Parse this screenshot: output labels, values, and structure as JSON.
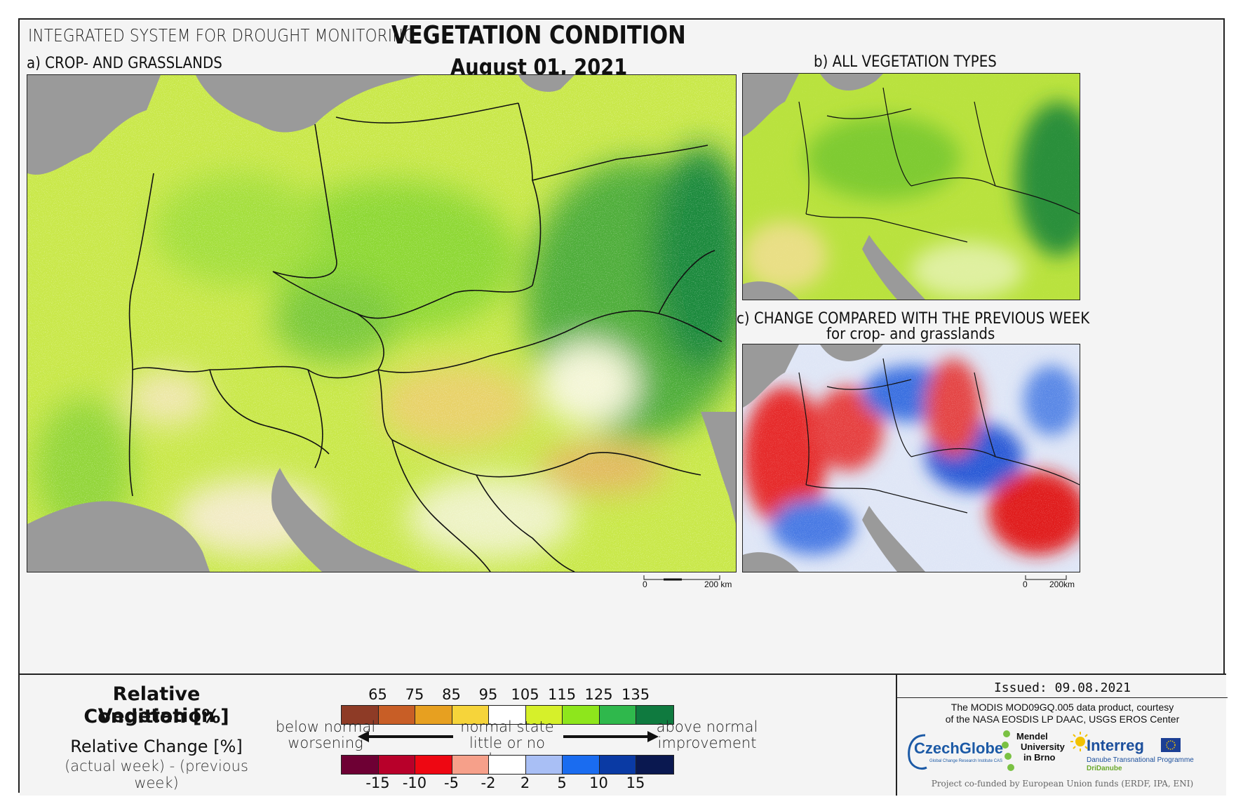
{
  "header": {
    "system_title": "INTEGRATED SYSTEM FOR DROUGHT MONITORING",
    "main_title": "VEGETATION CONDITION",
    "date": "August 01, 2021"
  },
  "panels": {
    "a": {
      "title": "a) CROP- AND GRASSLANDS",
      "scale_zero": "0",
      "scale_label": "200 km"
    },
    "b": {
      "title": "b) ALL VEGETATION TYPES"
    },
    "c": {
      "title": "c) CHANGE COMPARED WITH THE PREVIOUS WEEK",
      "subtitle": "for crop- and grasslands",
      "scale_zero": "0",
      "scale_label": "200km"
    }
  },
  "legend": {
    "rvc_title_line1": "Relative Vegetation",
    "rvc_title_line2": "Condition [%]",
    "change_title": "Relative Change [%]",
    "change_sub": "(actual week) - (previous week)",
    "rvc_ticks": [
      "65",
      "75",
      "85",
      "95",
      "105",
      "115",
      "125",
      "135"
    ],
    "rvc_colors": [
      "#8e3b26",
      "#c85e26",
      "#e7a020",
      "#f6d43a",
      "#ffffff",
      "#d6f02a",
      "#8ee61c",
      "#2fb84c",
      "#0f7a3f"
    ],
    "change_ticks": [
      "-15",
      "-10",
      "-5",
      "-2",
      "2",
      "5",
      "10",
      "15"
    ],
    "change_colors": [
      "#6e0034",
      "#b8002a",
      "#ee0712",
      "#f6a08a",
      "#ffffff",
      "#a9bff5",
      "#1a6cf0",
      "#0a3aa4",
      "#0a1850"
    ],
    "below_line1": "below normal",
    "below_line2": "worsening",
    "normal_line1": "normal state",
    "normal_line2": "little or no change",
    "above_line1": "above normal",
    "above_line2": "improvement"
  },
  "info": {
    "issued": "Issued: 09.08.2021",
    "credit_line1": "The MODIS MOD09GQ.005 data product, courtesy",
    "credit_line2": "of the NASA EOSDIS LP DAAC, USGS EROS Center",
    "czechglobe": "CzechGlobe",
    "czechglobe_sub": "Global Change Research Institute CAS",
    "mendel_line1": "Mendel",
    "mendel_line2": "University",
    "mendel_line3": "in Brno",
    "interreg": "Interreg",
    "interreg_sub1": "Danube Transnational Programme",
    "interreg_sub2": "DriDanube",
    "funding": "Project co-funded by European Union funds (ERDF, IPA, ENI)"
  }
}
